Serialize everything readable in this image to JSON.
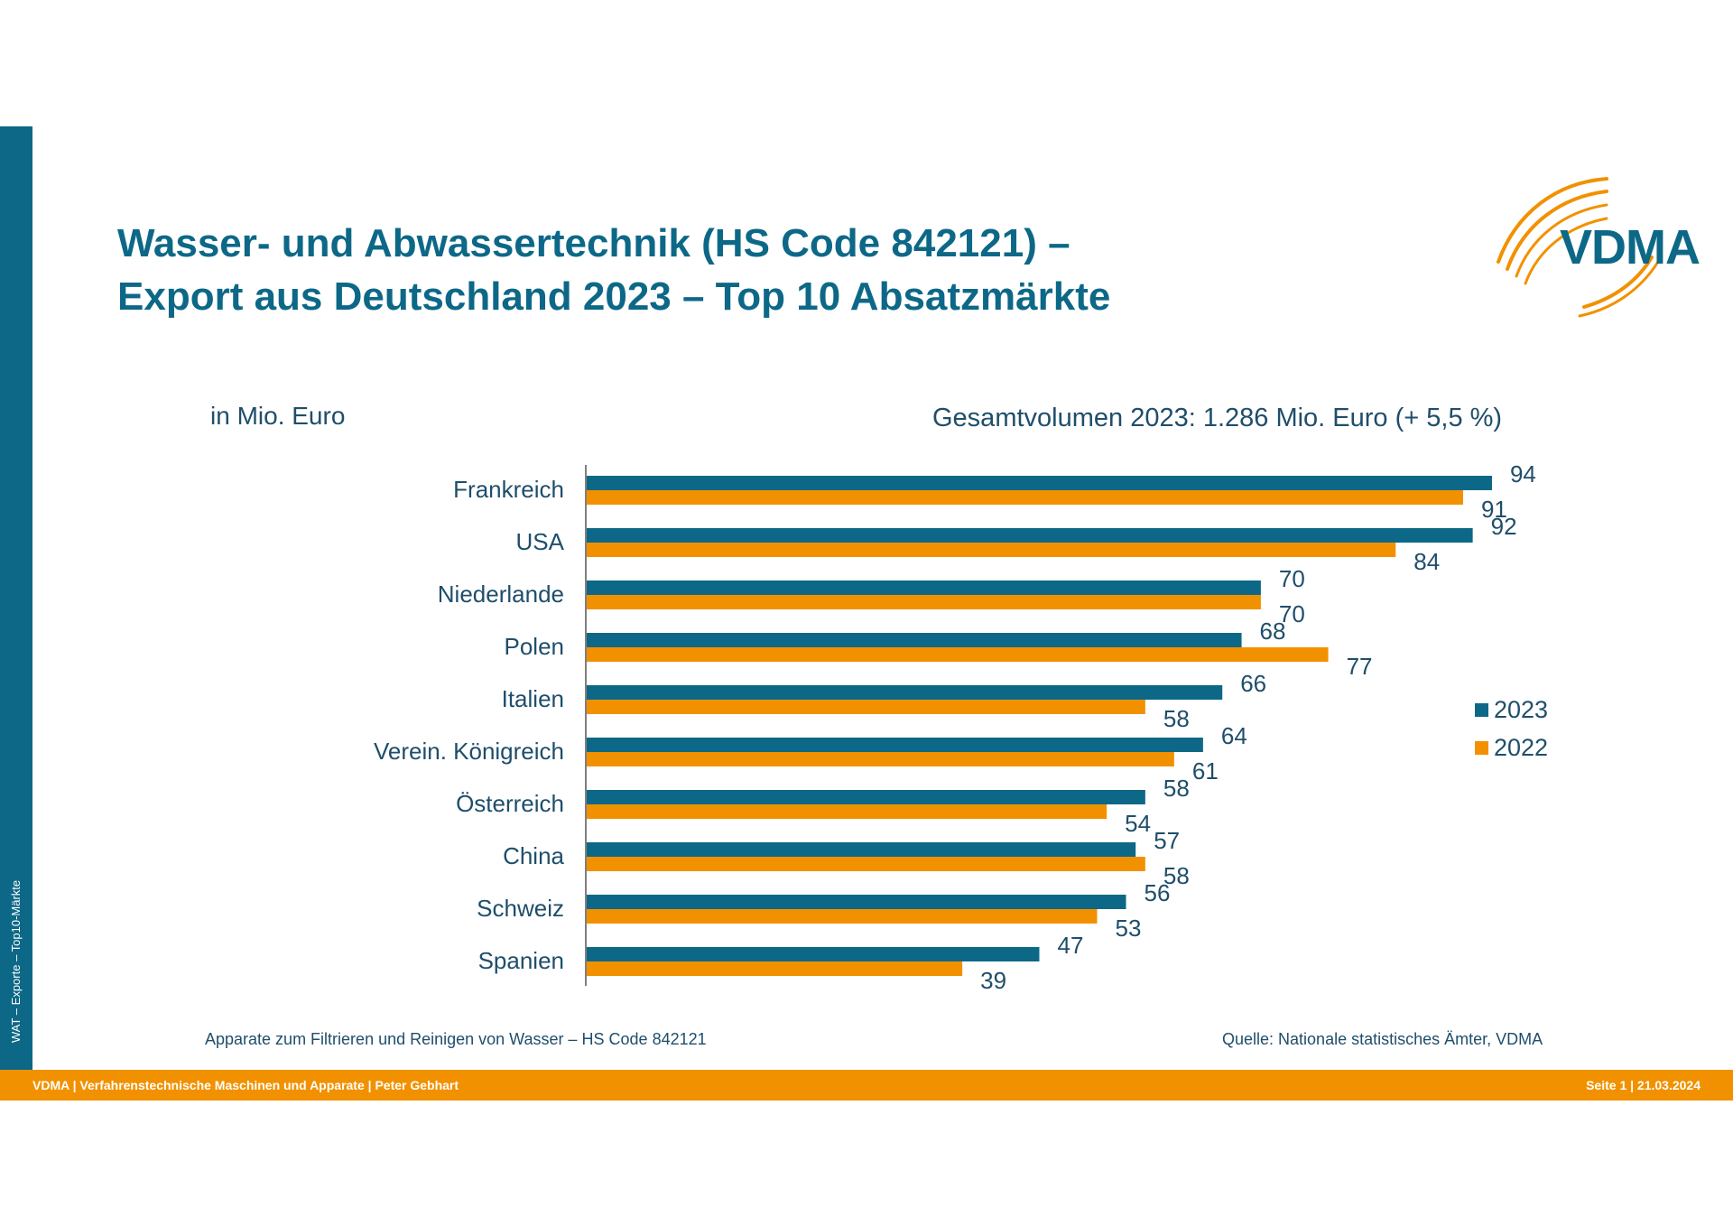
{
  "title_line1": "Wasser- und Abwassertechnik (HS Code 842121) –",
  "title_line2": "Export aus Deutschland 2023 – Top 10 Absatzmärkte",
  "logo_text": "VDMA",
  "unit_label": "in Mio. Euro",
  "total_label": "Gesamtvolumen 2023: 1.286 Mio. Euro (+ 5,5 %)",
  "side_text": "WAT – Exporte – Top10-Märkte",
  "note_left": "Apparate zum Filtrieren und Reinigen von Wasser – HS Code 842121",
  "note_right": "Quelle: Nationale statistisches Ämter, VDMA",
  "footer_left": "VDMA | Verfahrenstechnische Maschinen und Apparate | Peter Gebhart",
  "footer_right": "Seite 1 | 21.03.2024",
  "colors": {
    "series_2023": "#0d6887",
    "series_2022": "#f29100",
    "accent": "#0d6887"
  },
  "chart_data": {
    "type": "bar",
    "orientation": "horizontal",
    "categories": [
      "Frankreich",
      "USA",
      "Niederlande",
      "Polen",
      "Italien",
      "Verein. Königreich",
      "Österreich",
      "China",
      "Schweiz",
      "Spanien"
    ],
    "series": [
      {
        "name": "2023",
        "values": [
          94,
          92,
          70,
          68,
          66,
          64,
          58,
          57,
          56,
          47
        ]
      },
      {
        "name": "2022",
        "values": [
          91,
          84,
          70,
          77,
          58,
          61,
          54,
          58,
          53,
          39
        ]
      }
    ],
    "xlim": [
      0,
      100
    ],
    "grid": false,
    "legend_position": "right"
  }
}
